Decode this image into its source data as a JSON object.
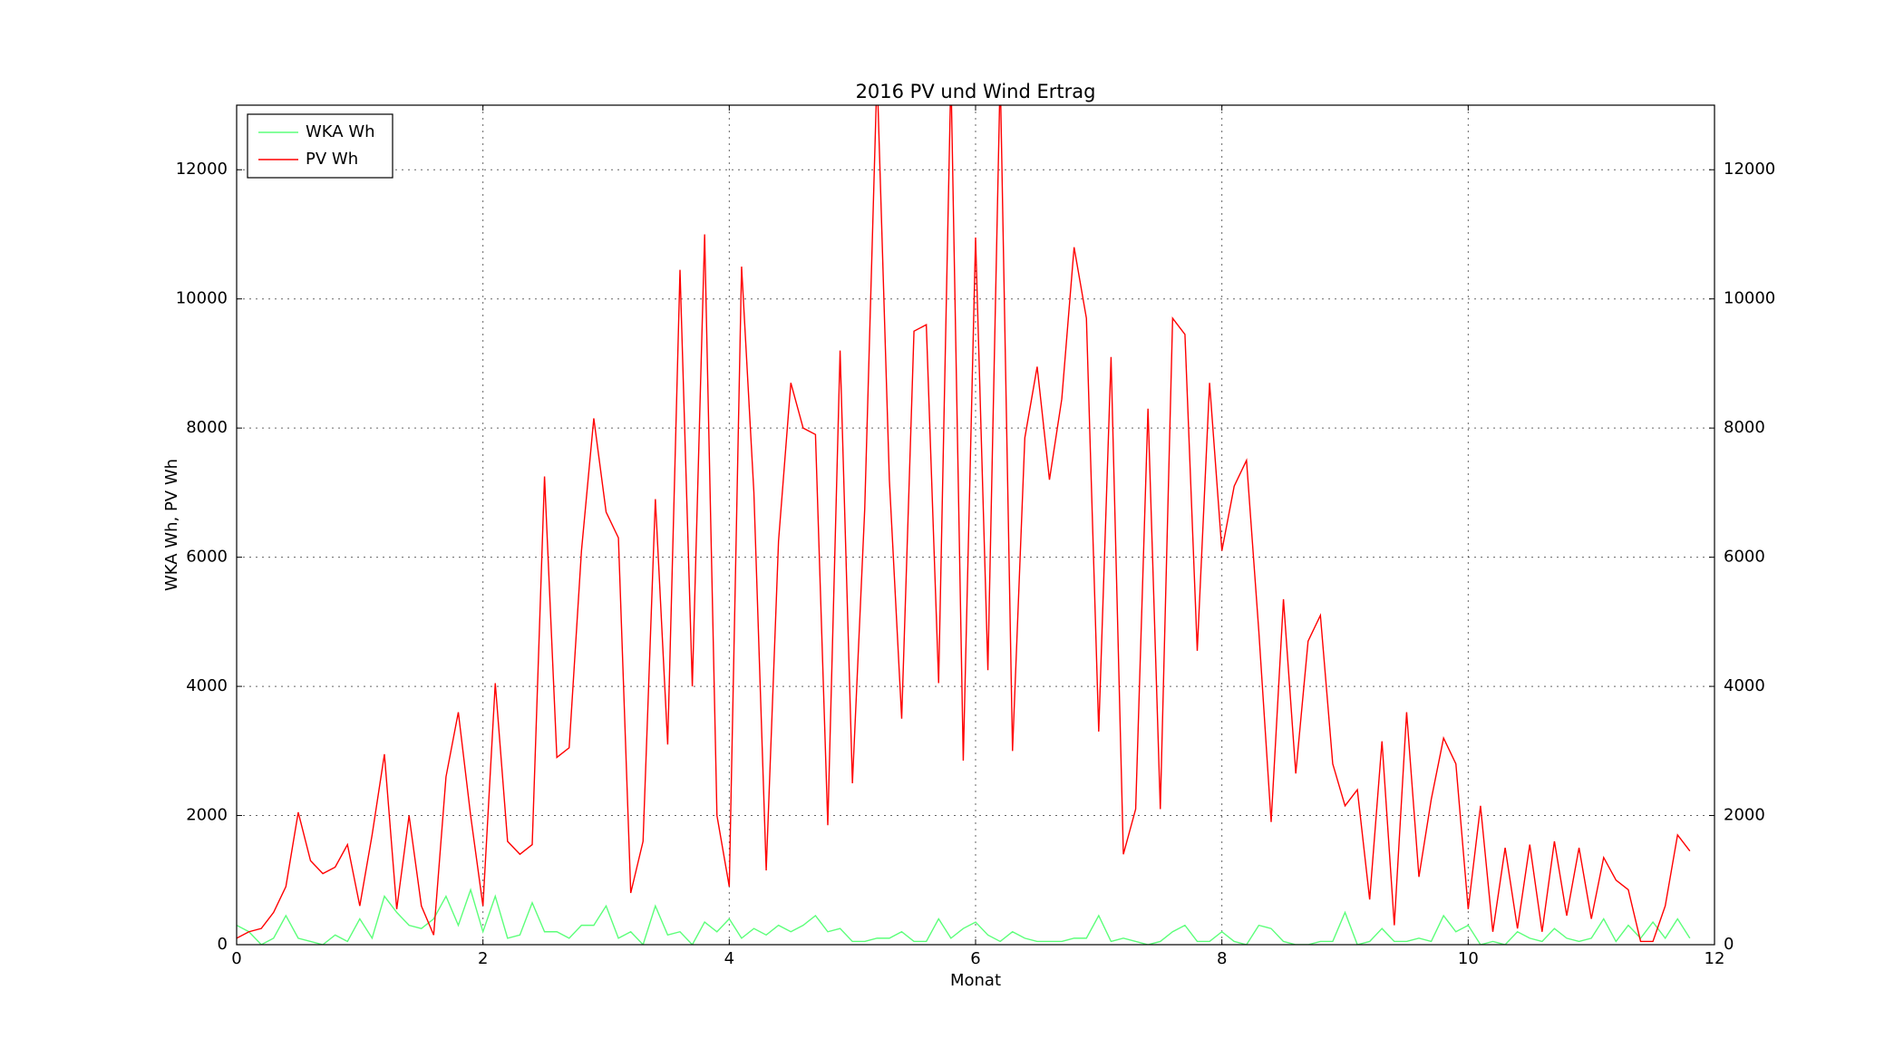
{
  "chart_data": {
    "type": "line",
    "title": "2016 PV und Wind Ertrag",
    "xlabel": "Monat",
    "ylabel": "WKA Wh, PV Wh",
    "x": [
      0,
      0.1,
      0.2,
      0.3,
      0.4,
      0.5,
      0.6,
      0.7,
      0.8,
      0.9,
      1,
      1.1,
      1.2,
      1.3,
      1.4,
      1.5,
      1.6,
      1.7,
      1.8,
      1.9,
      2,
      2.1,
      2.2,
      2.3,
      2.4,
      2.5,
      2.6,
      2.7,
      2.8,
      2.9,
      3,
      3.1,
      3.2,
      3.3,
      3.4,
      3.5,
      3.6,
      3.7,
      3.8,
      3.9,
      4,
      4.1,
      4.2,
      4.3,
      4.4,
      4.5,
      4.6,
      4.7,
      4.8,
      4.9,
      5,
      5.1,
      5.2,
      5.3,
      5.4,
      5.5,
      5.6,
      5.7,
      5.8,
      5.9,
      6,
      6.1,
      6.2,
      6.3,
      6.4,
      6.5,
      6.6,
      6.7,
      6.8,
      6.9,
      7,
      7.1,
      7.2,
      7.3,
      7.4,
      7.5,
      7.6,
      7.7,
      7.8,
      7.9,
      8,
      8.1,
      8.2,
      8.3,
      8.4,
      8.5,
      8.6,
      8.7,
      8.8,
      8.9,
      9,
      9.1,
      9.2,
      9.3,
      9.4,
      9.5,
      9.6,
      9.7,
      9.8,
      9.9,
      10,
      10.1,
      10.2,
      10.3,
      10.4,
      10.5,
      10.6,
      10.7,
      10.8,
      10.9,
      11,
      11.1,
      11.2,
      11.3,
      11.4,
      11.5,
      11.6,
      11.7,
      11.8
    ],
    "series": [
      {
        "name": "WKA Wh",
        "color": "#5cff7a",
        "values": [
          300,
          200,
          0,
          100,
          450,
          100,
          50,
          0,
          150,
          50,
          400,
          100,
          750,
          500,
          300,
          250,
          400,
          750,
          300,
          850,
          200,
          750,
          100,
          150,
          650,
          200,
          200,
          100,
          300,
          300,
          600,
          100,
          200,
          0,
          600,
          150,
          200,
          0,
          350,
          200,
          400,
          100,
          250,
          150,
          300,
          200,
          300,
          450,
          200,
          250,
          50,
          50,
          100,
          100,
          200,
          50,
          50,
          400,
          100,
          250,
          350,
          150,
          50,
          200,
          100,
          50,
          50,
          50,
          100,
          100,
          450,
          50,
          100,
          50,
          0,
          50,
          200,
          300,
          50,
          50,
          200,
          50,
          0,
          300,
          250,
          50,
          0,
          0,
          50,
          50,
          500,
          0,
          50,
          250,
          50,
          50,
          100,
          50,
          450,
          200,
          300,
          0,
          50,
          0,
          200,
          100,
          50,
          250,
          100,
          50,
          100,
          400,
          50,
          300,
          100,
          350,
          100,
          400,
          100
        ]
      },
      {
        "name": "PV Wh",
        "color": "#ff0000",
        "values": [
          100,
          200,
          250,
          500,
          900,
          2050,
          1300,
          1100,
          1200,
          1550,
          600,
          1700,
          2950,
          550,
          2000,
          600,
          150,
          2600,
          3600,
          2000,
          600,
          4050,
          1600,
          1400,
          1550,
          7250,
          2900,
          3050,
          6100,
          8150,
          6700,
          6300,
          800,
          1600,
          6900,
          3100,
          10450,
          4000,
          11000,
          2000,
          900,
          10500,
          7000,
          1150,
          6250,
          8700,
          8000,
          7900,
          1850,
          9200,
          2500,
          6750,
          13500,
          7200,
          3500,
          9500,
          9600,
          4050,
          13500,
          2850,
          10950,
          4250,
          13500,
          3000,
          7850,
          8950,
          7200,
          8450,
          10800,
          9700,
          3300,
          9100,
          1400,
          2100,
          8300,
          2100,
          9700,
          9450,
          4550,
          8700,
          6100,
          7100,
          7500,
          4850,
          1900,
          5350,
          2650,
          4700,
          5100,
          2800,
          2150,
          2400,
          700,
          3150,
          300,
          3600,
          1050,
          2250,
          3200,
          2800,
          550,
          2150,
          200,
          1500,
          250,
          1550,
          200,
          1600,
          450,
          1500,
          400,
          1350,
          1000,
          850,
          50,
          50,
          600,
          1700,
          1450
        ]
      }
    ],
    "xlim": [
      0,
      12
    ],
    "xticks": [
      0,
      2,
      4,
      6,
      8,
      10,
      12
    ],
    "ylim": [
      0,
      13000
    ],
    "yticks": [
      0,
      2000,
      4000,
      6000,
      8000,
      10000,
      12000
    ],
    "y2lim": [
      0,
      13000
    ],
    "y2ticks": [
      0,
      2000,
      4000,
      6000,
      8000,
      10000,
      12000
    ],
    "grid": true,
    "legend": "upper left"
  }
}
